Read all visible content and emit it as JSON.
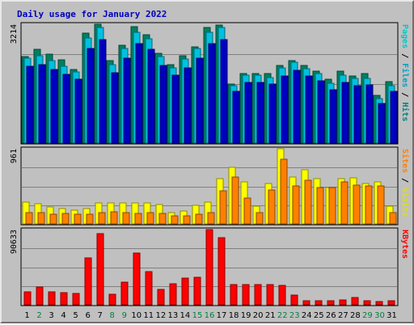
{
  "chart_data": {
    "type": "bar",
    "title": "Daily usage for January 2022",
    "title_color": "#0000c0",
    "categories": [
      "1",
      "2",
      "3",
      "4",
      "5",
      "6",
      "7",
      "8",
      "9",
      "10",
      "11",
      "12",
      "13",
      "14",
      "15",
      "16",
      "17",
      "18",
      "19",
      "20",
      "21",
      "22",
      "23",
      "24",
      "25",
      "26",
      "27",
      "28",
      "29",
      "30",
      "31"
    ],
    "weekend_days": [
      "2",
      "8",
      "9",
      "15",
      "16",
      "22",
      "23",
      "29",
      "30"
    ],
    "weekday_color": "#000000",
    "weekend_color": "#008040",
    "panels": [
      {
        "id": "hits",
        "max_label": "3214",
        "ymax": 3214,
        "side_labels": [
          {
            "text": "Pages",
            "color": "#00c8c8"
          },
          {
            "text": " / ",
            "color": "#000000"
          },
          {
            "text": "Files",
            "color": "#00a0c8"
          },
          {
            "text": " / ",
            "color": "#000000"
          },
          {
            "text": "Hits",
            "color": "#008080"
          }
        ],
        "series": [
          {
            "name": "Hits",
            "color": "#008060",
            "values": [
              2330,
              2530,
              2400,
              2250,
              1980,
              2970,
              3214,
              2230,
              2640,
              3140,
              2930,
              2430,
              2130,
              2370,
              2610,
              3130,
              3200,
              1590,
              1870,
              1870,
              1870,
              2100,
              2230,
              2100,
              1950,
              1720,
              1950,
              1820,
              1870,
              1280,
              1660
            ]
          },
          {
            "name": "Files",
            "color": "#00c0e0",
            "values": [
              2290,
              2370,
              2230,
              2070,
              1930,
              2840,
              3130,
              2130,
              2560,
              3000,
              2820,
              2340,
              2040,
              2280,
              2560,
              3000,
              3130,
              1560,
              1840,
              1840,
              1770,
              2030,
              2180,
              2020,
              1880,
              1620,
              1830,
              1740,
              1750,
              1200,
              1560
            ]
          },
          {
            "name": "Pages",
            "color": "#0000c0",
            "values": [
              2070,
              2130,
              2000,
              1860,
              1720,
              2560,
              2800,
              1900,
              2290,
              2700,
              2530,
              2100,
              1830,
              2040,
              2300,
              2700,
              2800,
              1400,
              1650,
              1650,
              1590,
              1820,
              1960,
              1810,
              1690,
              1450,
              1640,
              1560,
              1570,
              1080,
              1400
            ]
          }
        ]
      },
      {
        "id": "visits",
        "max_label": "961",
        "ymax": 961,
        "side_labels": [
          {
            "text": "Sites",
            "color": "#ff8000"
          },
          {
            "text": " / ",
            "color": "#000000"
          },
          {
            "text": "Visits",
            "color": "#e0e000"
          }
        ],
        "series": [
          {
            "name": "Visits",
            "color": "#ffff00",
            "values": [
              280,
              260,
              220,
              200,
              180,
              200,
              270,
              270,
              270,
              270,
              270,
              250,
              140,
              170,
              240,
              280,
              575,
              720,
              540,
              230,
              520,
              961,
              600,
              690,
              580,
              470,
              580,
              590,
              520,
              540,
              230
            ]
          },
          {
            "name": "Sites",
            "color": "#ff8000",
            "values": [
              140,
              140,
              120,
              130,
              120,
              120,
              140,
              160,
              140,
              130,
              140,
              130,
              100,
              100,
              120,
              140,
              420,
              600,
              330,
              140,
              430,
              830,
              490,
              560,
              470,
              470,
              540,
              500,
              490,
              490,
              140
            ]
          }
        ]
      },
      {
        "id": "kbytes",
        "max_label": "90633",
        "ymax": 90633,
        "side_labels": [
          {
            "text": "KBytes",
            "color": "#ff0000"
          }
        ],
        "series": [
          {
            "name": "KBytes",
            "color": "#ff0000",
            "values": [
              16000,
              21000,
              16000,
              14500,
              14000,
              57000,
              86000,
              13000,
              27000,
              62000,
              40000,
              19000,
              25000,
              32000,
              33000,
              90633,
              81000,
              24000,
              24500,
              24000,
              24000,
              23000,
              12000,
              5000,
              5000,
              5000,
              6000,
              9000,
              4500,
              4000,
              5000
            ]
          }
        ]
      }
    ],
    "grid": true
  }
}
